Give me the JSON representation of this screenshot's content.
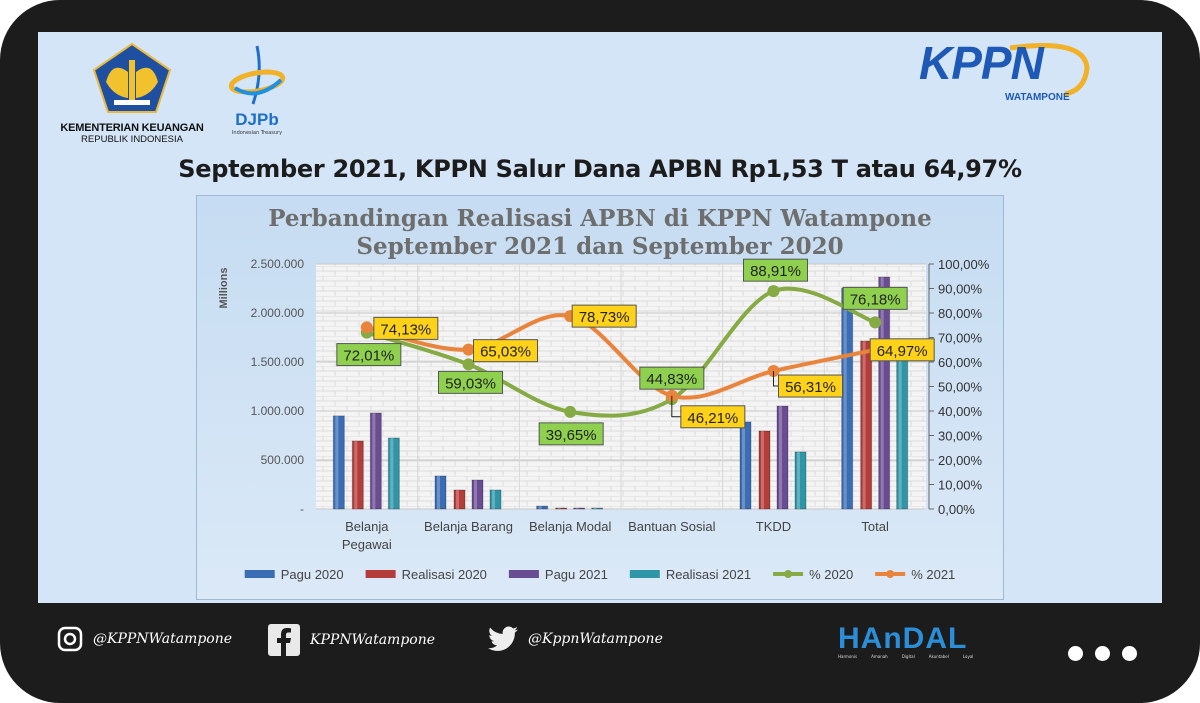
{
  "header": {
    "ministry_line1": "KEMENTERIAN KEUANGAN",
    "ministry_line2": "REPUBLIK INDONESIA",
    "djpb_logo": "DJPb",
    "djpb_sub": "Indonesian Treasury",
    "kppn_logo": "KPPN",
    "kppn_sub": "WATAMPONE",
    "headline": "September  2021, KPPN Salur Dana APBN Rp1,53 T atau 64,97%"
  },
  "chart_data": {
    "type": "bar",
    "title": "Perbandingan Realisasi APBN di KPPN Watampone",
    "subtitle": "September 2021 dan September 2020",
    "ylabel": "Millions",
    "ylim": [
      0,
      2500000
    ],
    "y2lim": [
      0,
      100
    ],
    "yticks": [
      "-",
      "500.000",
      "1.000.000",
      "1.500.000",
      "2.000.000",
      "2.500.000"
    ],
    "y2ticks": [
      "0,00%",
      "10,00%",
      "20,00%",
      "30,00%",
      "40,00%",
      "50,00%",
      "60,00%",
      "70,00%",
      "80,00%",
      "90,00%",
      "100,00%"
    ],
    "categories": [
      "Belanja Pegawai",
      "Belanja Barang",
      "Belanja Modal",
      "Bantuan Sosial",
      "TKDD",
      "Total"
    ],
    "category_lines": [
      [
        "Belanja",
        "Pegawai"
      ],
      [
        "Belanja Barang"
      ],
      [
        "Belanja Modal"
      ],
      [
        "Bantuan Sosial"
      ],
      [
        "TKDD"
      ],
      [
        "Total"
      ]
    ],
    "grid": true,
    "legend_position": "bottom",
    "series": [
      {
        "name": "Pagu 2020",
        "type": "bar",
        "color": "#3b6db5",
        "values": [
          950000,
          337000,
          30000,
          0,
          888000,
          2255000
        ]
      },
      {
        "name": "Realisasi 2020",
        "type": "bar",
        "color": "#b43c3a",
        "values": [
          694000,
          194000,
          10000,
          0,
          796000,
          1714000
        ]
      },
      {
        "name": "Pagu 2021",
        "type": "bar",
        "color": "#6a4c93",
        "values": [
          980000,
          296000,
          10000,
          0,
          1051000,
          2367000
        ]
      },
      {
        "name": "Realisasi 2021",
        "type": "bar",
        "color": "#2f96a8",
        "values": [
          724000,
          194000,
          10000,
          0,
          582000,
          1538000
        ]
      },
      {
        "name": "% 2020",
        "type": "line",
        "axis": "right",
        "color": "#86ab45",
        "label_color": "#8fd14f",
        "values": [
          72.01,
          59.03,
          39.65,
          44.83,
          88.91,
          76.18
        ],
        "labels": [
          "72,01%",
          "59,03%",
          "39,65%",
          "44,83%",
          "88,91%",
          "76,18%"
        ]
      },
      {
        "name": "% 2021",
        "type": "line",
        "axis": "right",
        "color": "#e8843c",
        "label_color": "#ffd21a",
        "values": [
          74.13,
          65.03,
          78.73,
          46.21,
          56.31,
          64.97
        ],
        "labels": [
          "74,13%",
          "65,03%",
          "78,73%",
          "46,21%",
          "56,31%",
          "64,97%"
        ]
      }
    ]
  },
  "footer": {
    "instagram": "@KPPNWatampone",
    "facebook": "KPPNWatampone",
    "twitter": "@KppnWatampone",
    "handal_logo": "HAnDAL",
    "handal_words": [
      "Harmonis",
      "Amanah",
      "Digital",
      "Akuntabel",
      "Loyal"
    ]
  }
}
